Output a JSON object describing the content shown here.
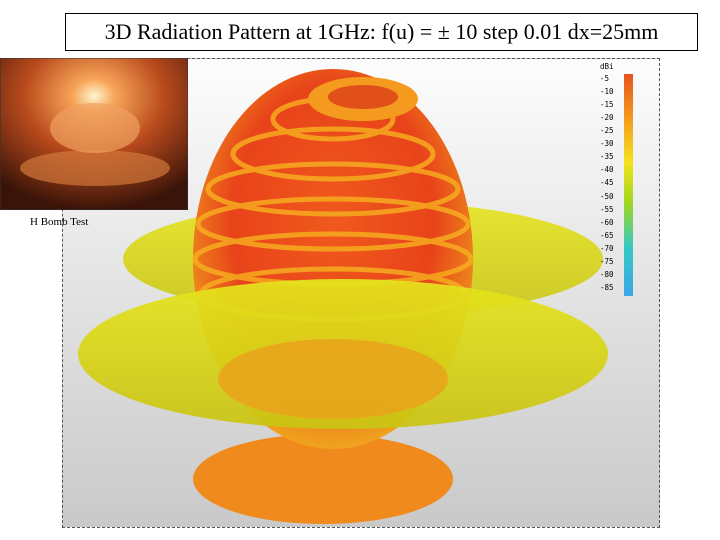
{
  "title": "3D Radiation Pattern at 1GHz:  f(u) = ± 10 step 0.01 dx=25mm",
  "inset": {
    "caption": "H Bomb Test"
  },
  "legend": {
    "unit": "dBi",
    "labels": [
      "-5",
      "-10",
      "-15",
      "-20",
      "-25",
      "-30",
      "-35",
      "-40",
      "-45",
      "-50",
      "-55",
      "-60",
      "-65",
      "-70",
      "-75",
      "-80",
      "-85"
    ]
  }
}
